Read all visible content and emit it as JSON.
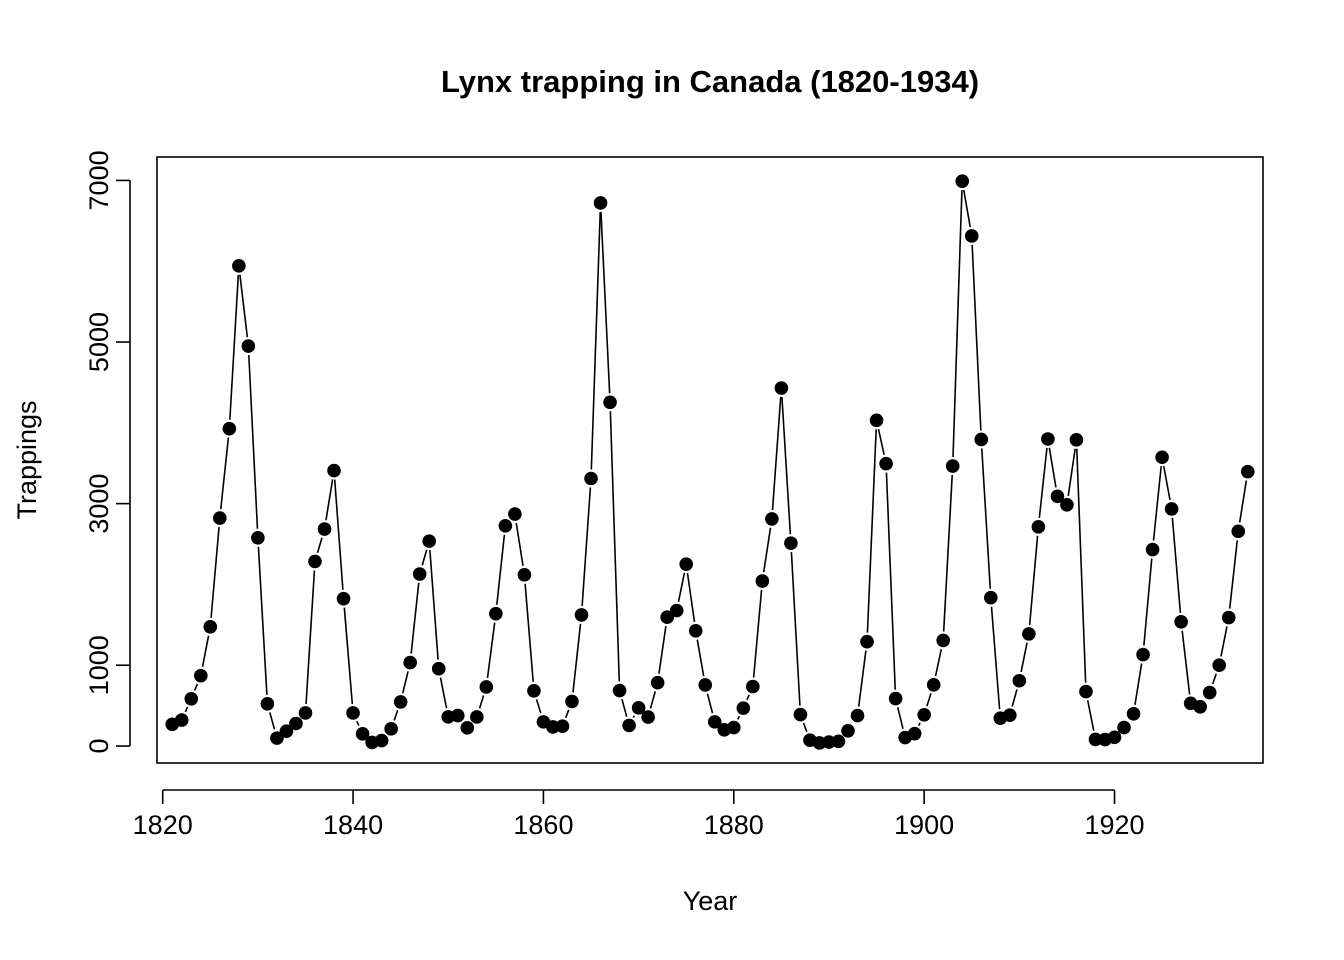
{
  "chart_data": {
    "type": "line",
    "title": "Lynx trapping in Canada (1820-1934)",
    "xlabel": "Year",
    "ylabel": "Trappings",
    "xlim": [
      1819.4,
      1935.6
    ],
    "ylim": [
      -210,
      7290
    ],
    "xticks": [
      1820,
      1840,
      1860,
      1880,
      1900,
      1920
    ],
    "yticks": [
      0,
      1000,
      3000,
      5000,
      7000
    ],
    "style": "line with filled point markers (type b)",
    "grid": false,
    "legend": "none",
    "x": [
      1821,
      1822,
      1823,
      1824,
      1825,
      1826,
      1827,
      1828,
      1829,
      1830,
      1831,
      1832,
      1833,
      1834,
      1835,
      1836,
      1837,
      1838,
      1839,
      1840,
      1841,
      1842,
      1843,
      1844,
      1845,
      1846,
      1847,
      1848,
      1849,
      1850,
      1851,
      1852,
      1853,
      1854,
      1855,
      1856,
      1857,
      1858,
      1859,
      1860,
      1861,
      1862,
      1863,
      1864,
      1865,
      1866,
      1867,
      1868,
      1869,
      1870,
      1871,
      1872,
      1873,
      1874,
      1875,
      1876,
      1877,
      1878,
      1879,
      1880,
      1881,
      1882,
      1883,
      1884,
      1885,
      1886,
      1887,
      1888,
      1889,
      1890,
      1891,
      1892,
      1893,
      1894,
      1895,
      1896,
      1897,
      1898,
      1899,
      1900,
      1901,
      1902,
      1903,
      1904,
      1905,
      1906,
      1907,
      1908,
      1909,
      1910,
      1911,
      1912,
      1913,
      1914,
      1915,
      1916,
      1917,
      1918,
      1919,
      1920,
      1921,
      1922,
      1923,
      1924,
      1925,
      1926,
      1927,
      1928,
      1929,
      1930,
      1931,
      1932,
      1933,
      1934
    ],
    "values": [
      269,
      321,
      585,
      871,
      1475,
      2821,
      3928,
      5943,
      4950,
      2577,
      523,
      98,
      184,
      279,
      409,
      2285,
      2685,
      3409,
      1824,
      409,
      151,
      45,
      68,
      213,
      546,
      1033,
      2129,
      2536,
      957,
      361,
      377,
      225,
      360,
      731,
      1638,
      2725,
      2871,
      2119,
      684,
      299,
      236,
      245,
      552,
      1623,
      3311,
      6721,
      4254,
      687,
      255,
      473,
      358,
      784,
      1594,
      1676,
      2251,
      1426,
      756,
      299,
      201,
      229,
      469,
      736,
      2042,
      2811,
      4431,
      2511,
      389,
      73,
      39,
      49,
      59,
      188,
      377,
      1292,
      4031,
      3495,
      587,
      105,
      153,
      387,
      758,
      1307,
      3465,
      6991,
      6313,
      3794,
      1836,
      345,
      382,
      808,
      1388,
      2713,
      3800,
      3091,
      2985,
      3790,
      674,
      81,
      80,
      108,
      229,
      399,
      1132,
      2432,
      3574,
      2935,
      1537,
      529,
      485,
      662,
      1000,
      1590,
      2657,
      3396
    ],
    "colors": {
      "line": "#000000",
      "points": "#000000",
      "background": "#ffffff"
    }
  }
}
